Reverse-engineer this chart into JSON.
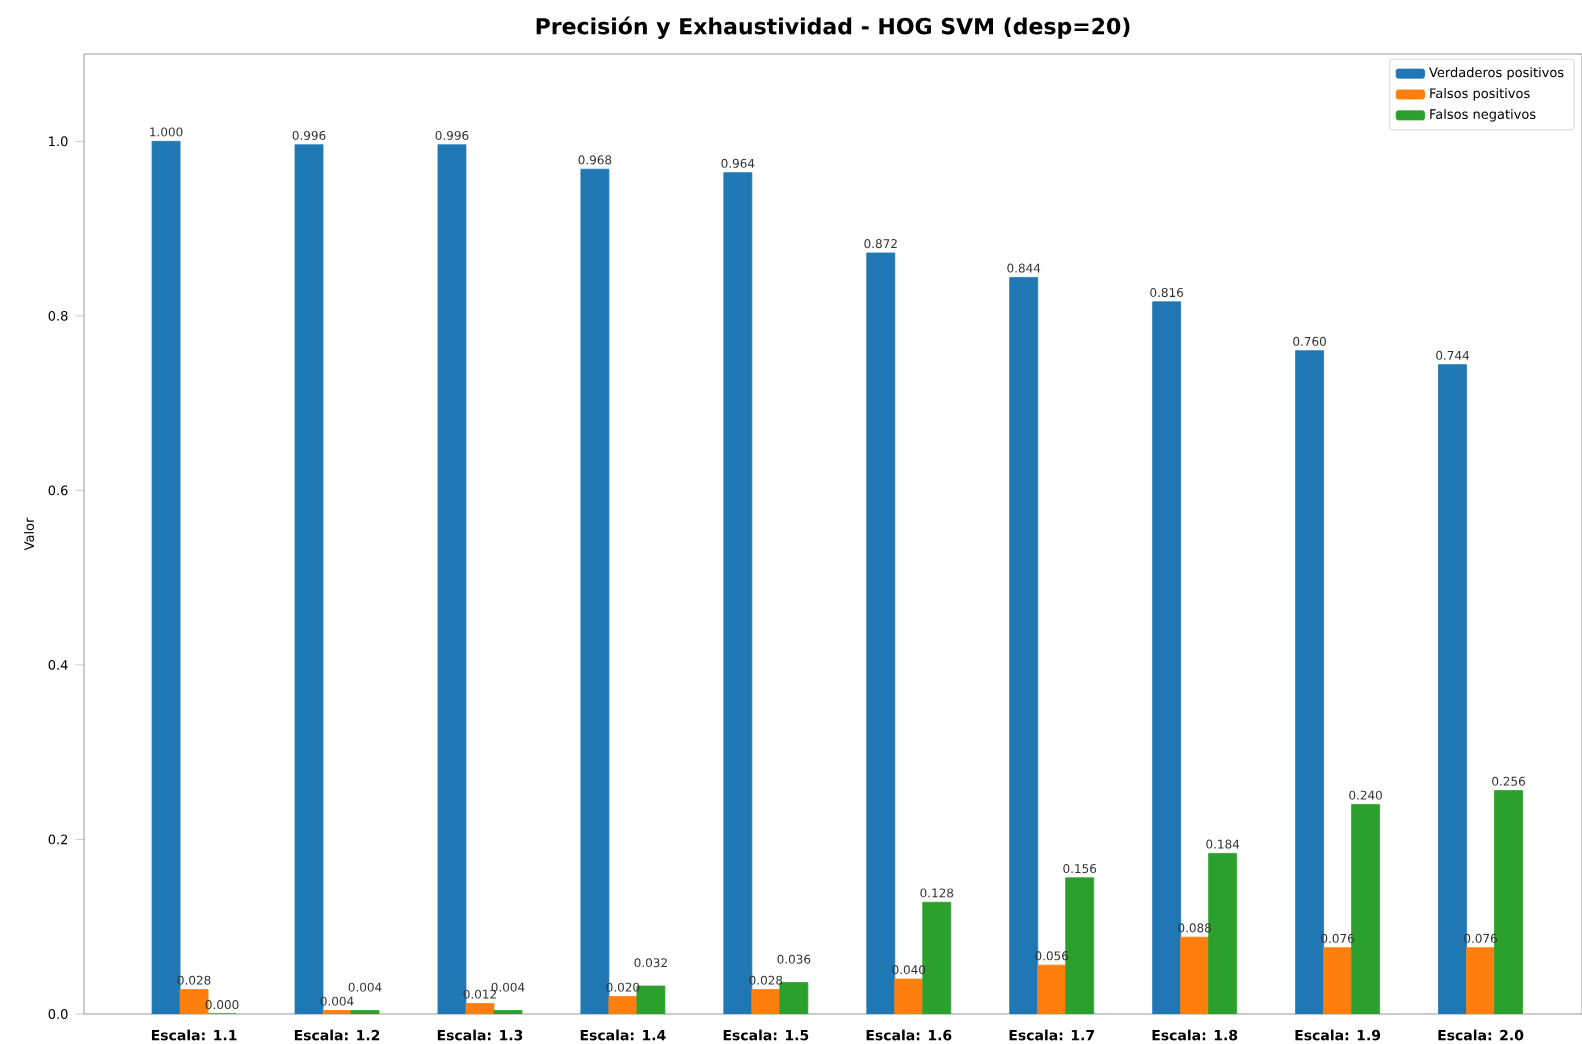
{
  "chart_data": {
    "type": "bar",
    "title": "Precisión y Exhaustividad - HOG SVM (desp=20)",
    "ylabel": "Valor",
    "categories": [
      "Escala: 1.1",
      "Escala: 1.2",
      "Escala: 1.3",
      "Escala: 1.4",
      "Escala: 1.5",
      "Escala: 1.6",
      "Escala: 1.7",
      "Escala: 1.8",
      "Escala: 1.9",
      "Escala: 2.0"
    ],
    "series": [
      {
        "name": "Verdaderos positivos",
        "color": "#1f77b4",
        "values": [
          1.0,
          0.996,
          0.996,
          0.968,
          0.964,
          0.872,
          0.844,
          0.816,
          0.76,
          0.744
        ],
        "value_labels": [
          "1.000",
          "0.996",
          "0.996",
          "0.968",
          "0.964",
          "0.872",
          "0.844",
          "0.816",
          "0.760",
          "0.744"
        ]
      },
      {
        "name": "Falsos positivos",
        "color": "#ff7f0e",
        "values": [
          0.028,
          0.004,
          0.012,
          0.02,
          0.028,
          0.04,
          0.056,
          0.088,
          0.076,
          0.076
        ],
        "value_labels": [
          "0.028",
          "0.004",
          "0.012",
          "0.020",
          "0.028",
          "0.040",
          "0.056",
          "0.088",
          "0.076",
          "0.076"
        ]
      },
      {
        "name": "Falsos negativos",
        "color": "#2ca02c",
        "values": [
          0.0,
          0.004,
          0.004,
          0.032,
          0.036,
          0.128,
          0.156,
          0.184,
          0.24,
          0.256
        ],
        "value_labels": [
          "0.000",
          "0.004",
          "0.004",
          "0.032",
          "0.036",
          "0.128",
          "0.156",
          "0.184",
          "0.240",
          "0.256"
        ]
      }
    ],
    "ylim": [
      0,
      1.1
    ],
    "yticks": [
      {
        "value": 0,
        "label": "0.0"
      },
      {
        "value": 0.2,
        "label": "0.2"
      },
      {
        "value": 0.4,
        "label": "0.4"
      },
      {
        "value": 0.6,
        "label": "0.6"
      },
      {
        "value": 0.8,
        "label": "0.8"
      },
      {
        "value": 1.0,
        "label": "1.0"
      }
    ],
    "legend": "top right",
    "grid": false
  }
}
